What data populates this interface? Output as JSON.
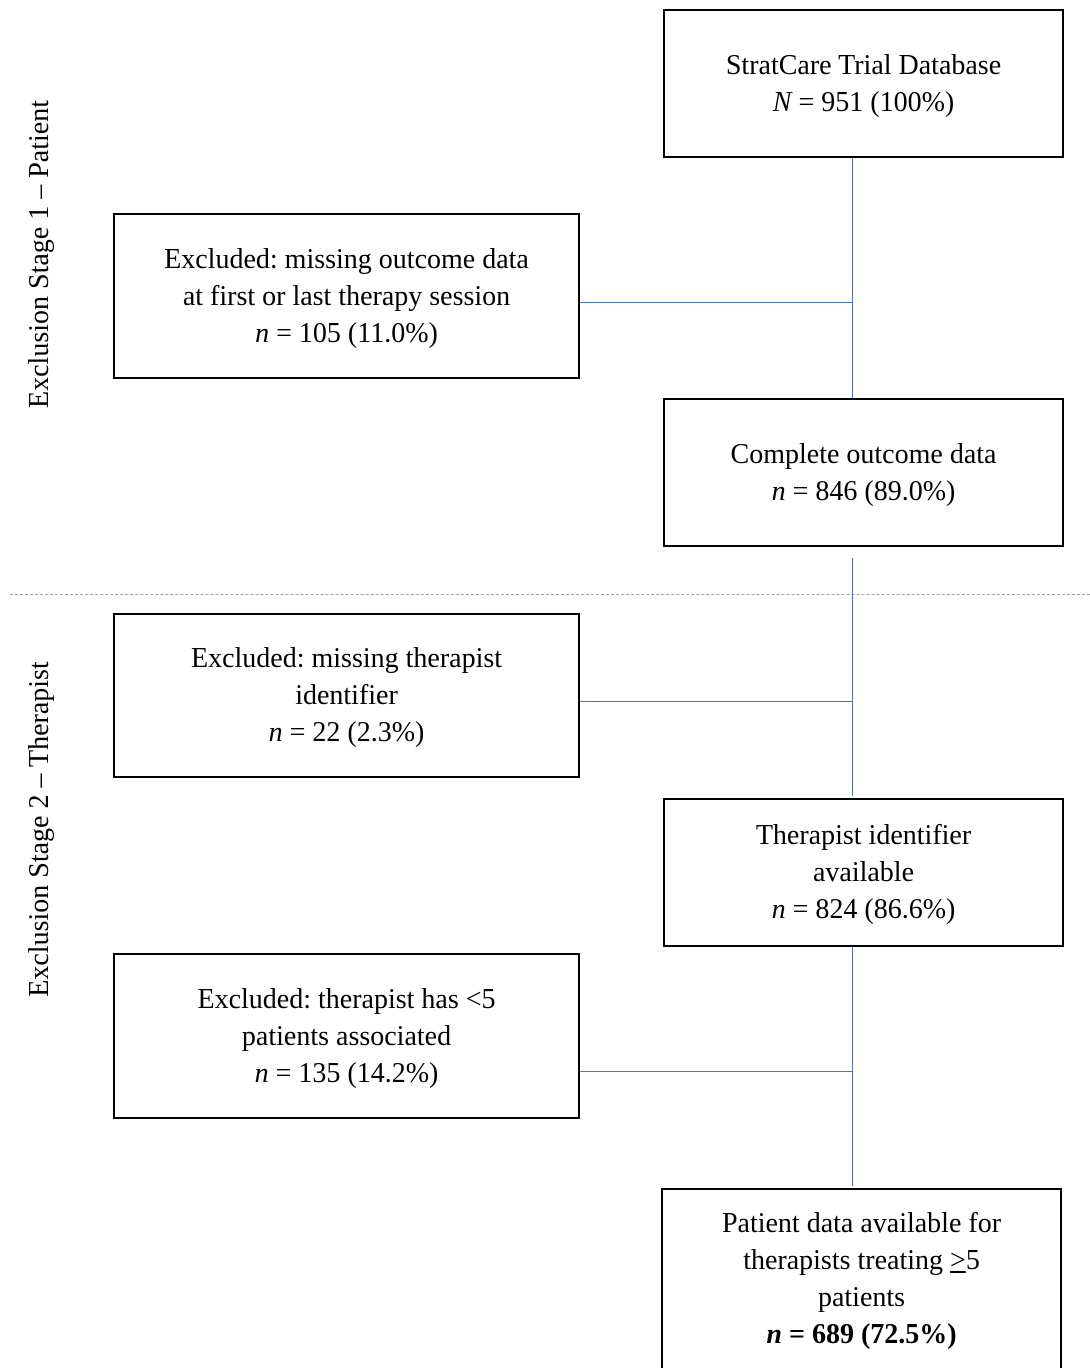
{
  "stage_labels": {
    "stage1": "Exclusion Stage 1 – Patient",
    "stage2": "Exclusion Stage 2 – Therapist"
  },
  "boxes": {
    "database": {
      "line1": "StratCare Trial Database",
      "stat_var": "N",
      "stat_rest": " = 951 (100%)"
    },
    "excluded_outcome": {
      "line1": "Excluded: missing outcome data",
      "line2": "at first or last therapy session",
      "stat_var": "n",
      "stat_rest": " = 105 (11.0%)"
    },
    "complete_outcome": {
      "line1": "Complete outcome data",
      "stat_var": "n",
      "stat_rest": " = 846 (89.0%)"
    },
    "excluded_therapist_id": {
      "line1": "Excluded: missing therapist",
      "line2": "identifier",
      "stat_var": "n",
      "stat_rest": " = 22 (2.3%)"
    },
    "therapist_id_available": {
      "line1": "Therapist identifier",
      "line2": "available",
      "stat_var": "n",
      "stat_rest": " = 824 (86.6%)"
    },
    "excluded_few_patients": {
      "line1": "Excluded: therapist has <5",
      "line2": "patients associated",
      "stat_var": "n",
      "stat_rest": " = 135 (14.2%)"
    },
    "final_sample": {
      "line1": "Patient data available for",
      "line2_pre": "therapists treating ",
      "line2_sym": ">",
      "line2_post": "5",
      "line3": "patients",
      "stat_var": "n",
      "stat_rest": " = 689 (72.5%)"
    }
  },
  "colors": {
    "connector": "#4472c4",
    "divider": "#a0a0a0",
    "border": "#000000"
  }
}
